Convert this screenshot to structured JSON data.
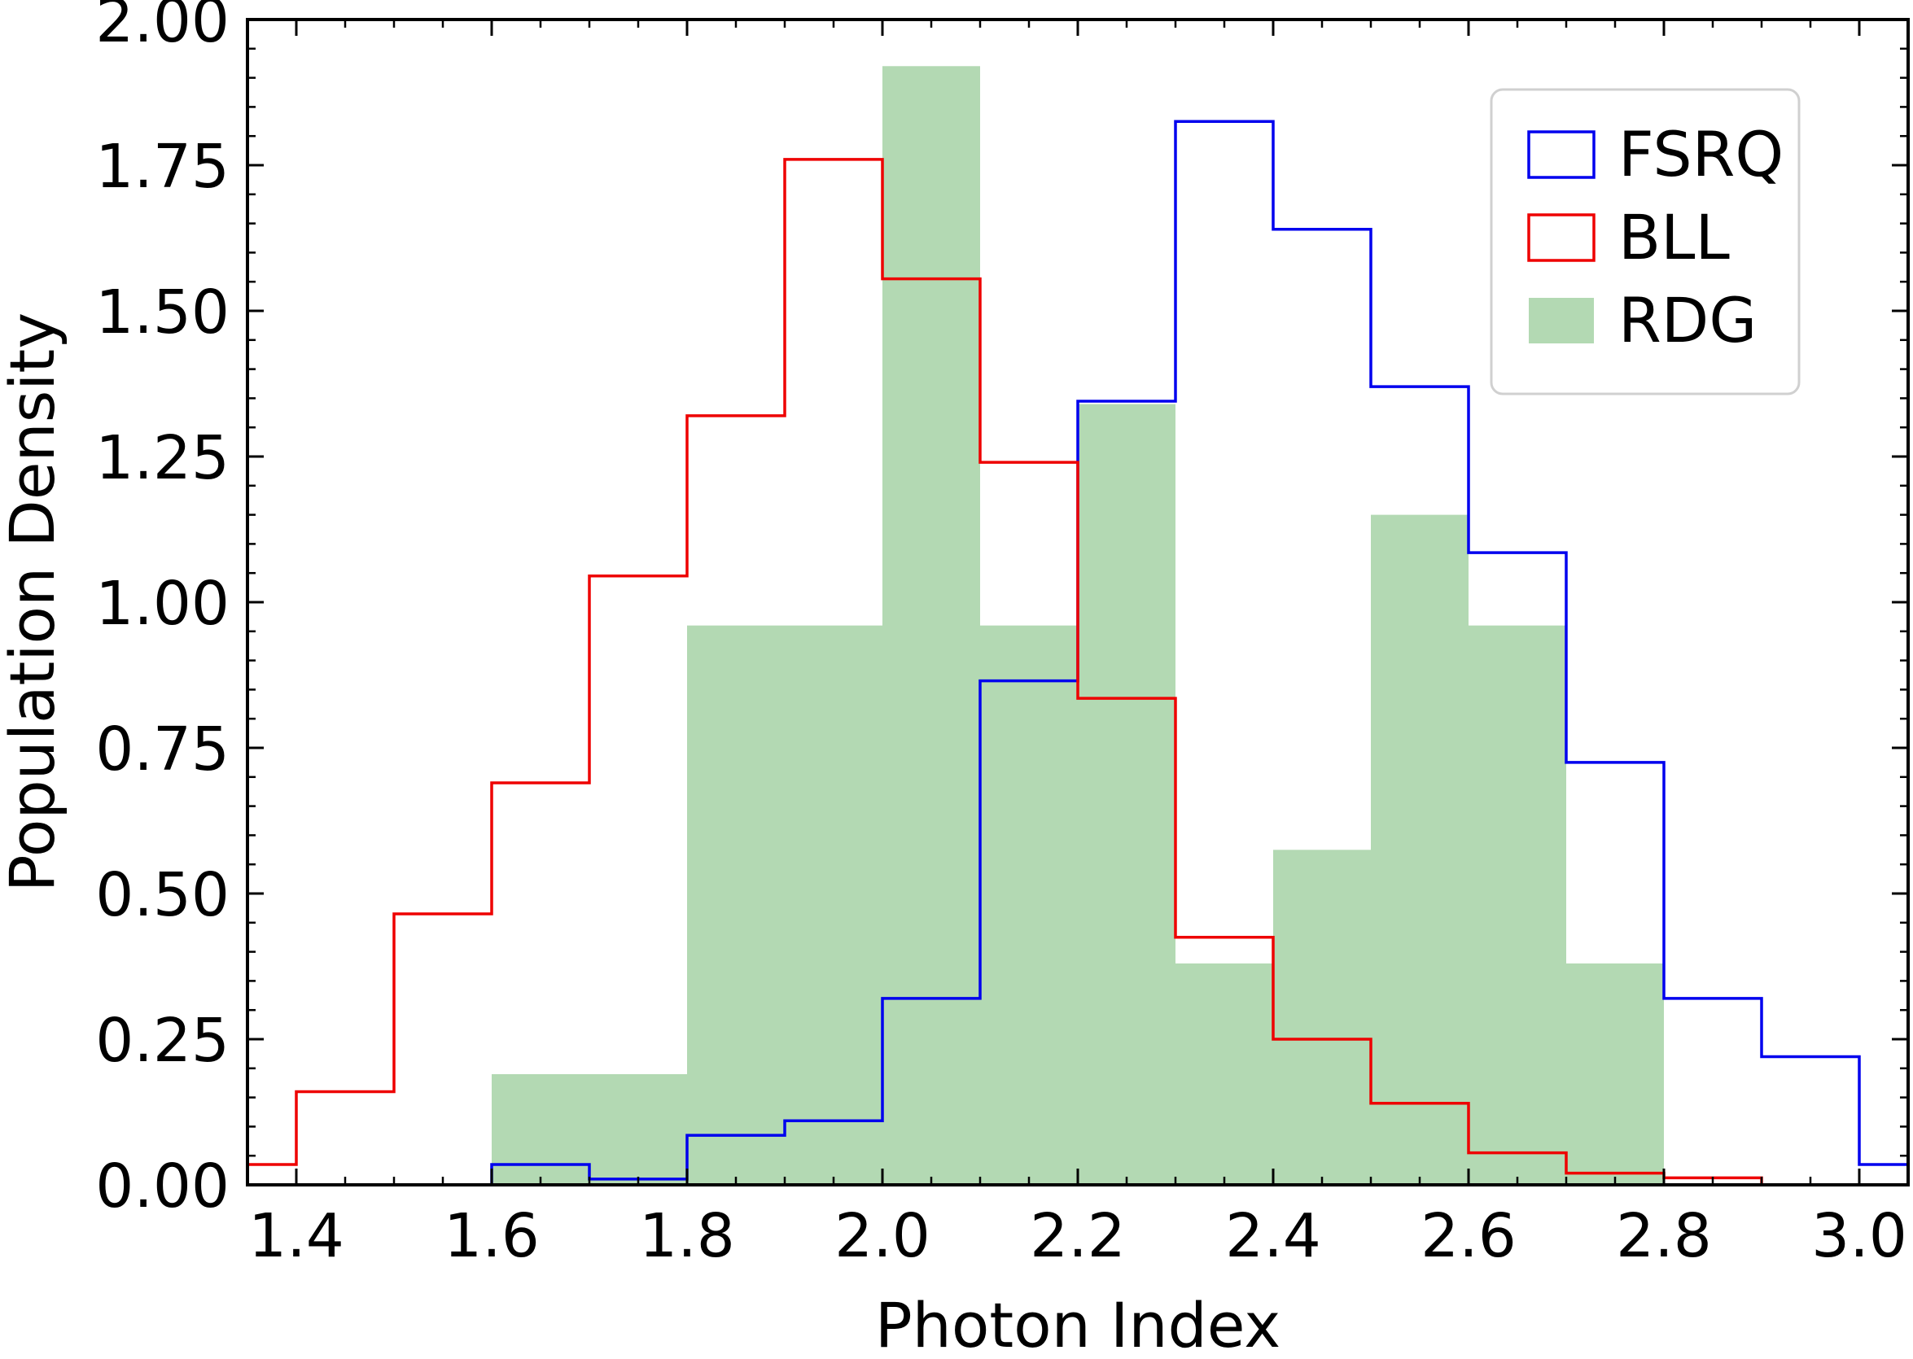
{
  "chart_data": {
    "type": "histogram",
    "xlabel": "Photon Index",
    "ylabel": "Population Density",
    "xlim": [
      1.35,
      3.05
    ],
    "ylim": [
      0.0,
      2.0
    ],
    "xticks": [
      1.4,
      1.6,
      1.8,
      2.0,
      2.2,
      2.4,
      2.6,
      2.8,
      3.0
    ],
    "xtick_labels": [
      "1.4",
      "1.6",
      "1.8",
      "2.0",
      "2.2",
      "2.4",
      "2.6",
      "2.8",
      "3.0"
    ],
    "yticks": [
      0.0,
      0.25,
      0.5,
      0.75,
      1.0,
      1.25,
      1.5,
      1.75,
      2.0
    ],
    "ytick_labels": [
      "0.00",
      "0.25",
      "0.50",
      "0.75",
      "1.00",
      "1.25",
      "1.50",
      "1.75",
      "2.00"
    ],
    "grid": false,
    "legend_position": "top-right",
    "series": [
      {
        "name": "RDG",
        "style": "filled",
        "color": "#b3d9b3",
        "bins": [
          1.6,
          1.8,
          2.0,
          2.1,
          2.2,
          2.3,
          2.4,
          2.5,
          2.6,
          2.7,
          2.8
        ],
        "values": [
          0.19,
          0.96,
          1.92,
          0.96,
          1.34,
          0.38,
          0.575,
          1.15,
          0.96,
          0.38
        ]
      },
      {
        "name": "FSRQ",
        "style": "step",
        "color": "#0000ee",
        "bins": [
          1.6,
          1.7,
          1.8,
          1.9,
          2.0,
          2.1,
          2.2,
          2.3,
          2.4,
          2.5,
          2.6,
          2.7,
          2.8,
          2.9,
          3.0,
          3.1
        ],
        "values": [
          0.035,
          0.01,
          0.085,
          0.11,
          0.32,
          0.865,
          1.345,
          1.825,
          1.64,
          1.37,
          1.085,
          0.725,
          0.32,
          0.22,
          0.035
        ]
      },
      {
        "name": "BLL",
        "style": "step",
        "color": "#ee0000",
        "bins": [
          1.3,
          1.4,
          1.5,
          1.6,
          1.7,
          1.8,
          1.9,
          2.0,
          2.1,
          2.2,
          2.3,
          2.4,
          2.5,
          2.6,
          2.7,
          2.8,
          2.9
        ],
        "values": [
          0.035,
          0.16,
          0.465,
          0.69,
          1.045,
          1.32,
          1.76,
          1.555,
          1.24,
          0.835,
          0.425,
          0.25,
          0.14,
          0.055,
          0.02,
          0.012
        ]
      }
    ]
  }
}
